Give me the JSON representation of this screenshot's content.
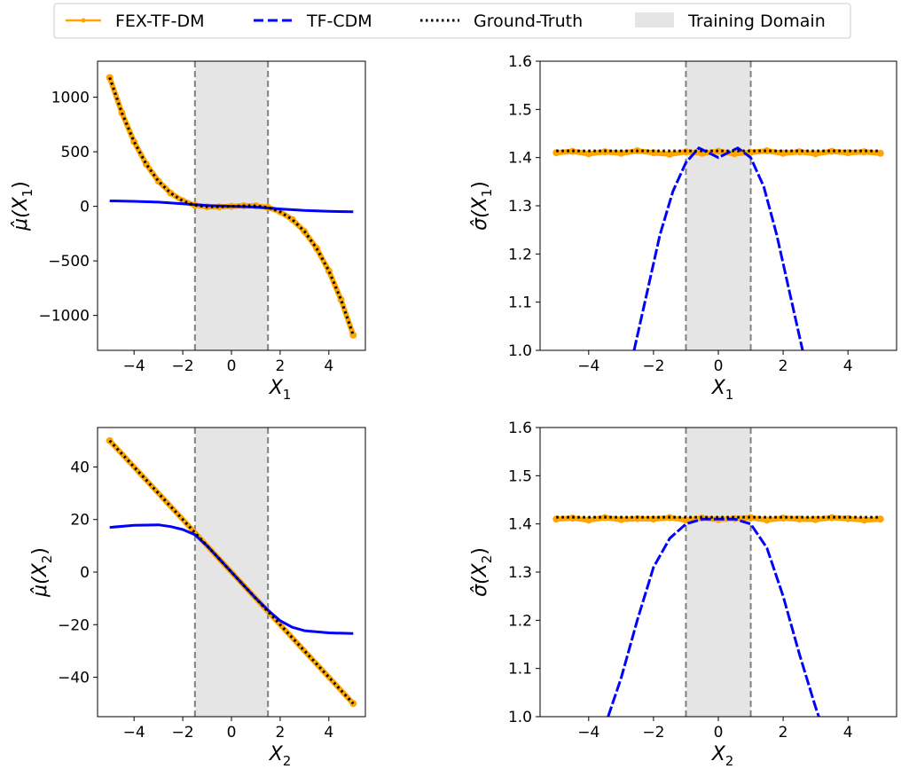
{
  "legend": {
    "items": [
      {
        "label": "FEX-TF-DM",
        "style": "orange-solid-dots",
        "color": "#FFA500"
      },
      {
        "label": "TF-CDM",
        "style": "blue-dashed",
        "color": "#0000FF"
      },
      {
        "label": "Ground-Truth",
        "style": "black-dotted",
        "color": "#000000"
      },
      {
        "label": "Training Domain",
        "style": "gray-patch",
        "color": "#E5E5E5"
      }
    ]
  },
  "chart_data": [
    {
      "id": "mu_x1",
      "type": "line",
      "xlabel_base": "X",
      "xlabel_sub": "1",
      "ylabel_base": "μ̂(X",
      "ylabel_sub": "1",
      "ylabel_close": ")",
      "xlim": [
        -5.5,
        5.5
      ],
      "ylim": [
        -1320,
        1330
      ],
      "xticks": [
        -4,
        -2,
        0,
        2,
        4
      ],
      "xtick_labels": [
        "−4",
        "−2",
        "0",
        "2",
        "4"
      ],
      "yticks": [
        -1000,
        -500,
        0,
        500,
        1000
      ],
      "ytick_labels": [
        "−1000",
        "−500",
        "0",
        "500",
        "1000"
      ],
      "training_domain": [
        -1.5,
        1.5
      ],
      "series": [
        {
          "name": "FEX-TF-DM",
          "x": [
            -5,
            -4.5,
            -4,
            -3.5,
            -3,
            -2.5,
            -2,
            -1.5,
            -1,
            -0.5,
            0,
            0.5,
            1,
            1.5,
            2,
            2.5,
            3,
            3.5,
            4,
            4.5,
            5
          ],
          "values": [
            1180,
            855,
            592,
            386,
            231,
            121,
            50,
            10,
            -4,
            -5,
            0,
            5,
            4,
            -10,
            -50,
            -121,
            -231,
            -386,
            -592,
            -855,
            -1180
          ]
        },
        {
          "name": "TF-CDM",
          "x": [
            -5,
            -4,
            -3,
            -2,
            -1.5,
            -1,
            -0.5,
            0,
            0.5,
            1,
            1.5,
            2,
            3,
            4,
            5
          ],
          "values": [
            50,
            46,
            38,
            24,
            15,
            7,
            3,
            0,
            -3,
            -7,
            -15,
            -24,
            -38,
            -46,
            -50
          ]
        },
        {
          "name": "Ground-Truth",
          "x": [
            -5,
            -4.5,
            -4,
            -3.5,
            -3,
            -2.5,
            -2,
            -1.5,
            -1,
            -0.5,
            0,
            0.5,
            1,
            1.5,
            2,
            2.5,
            3,
            3.5,
            4,
            4.5,
            5
          ],
          "values": [
            1180,
            855,
            592,
            386,
            231,
            121,
            50,
            10,
            -4,
            -5,
            0,
            5,
            4,
            -10,
            -50,
            -121,
            -231,
            -386,
            -592,
            -855,
            -1180
          ]
        }
      ]
    },
    {
      "id": "sigma_x1",
      "type": "line",
      "xlabel_base": "X",
      "xlabel_sub": "1",
      "ylabel_base": "σ̂(X",
      "ylabel_sub": "1",
      "ylabel_close": ")",
      "xlim": [
        -5.5,
        5.5
      ],
      "ylim": [
        1.0,
        1.6
      ],
      "xticks": [
        -4,
        -2,
        0,
        2,
        4
      ],
      "xtick_labels": [
        "−4",
        "−2",
        "0",
        "2",
        "4"
      ],
      "yticks": [
        1.0,
        1.1,
        1.2,
        1.3,
        1.4,
        1.5,
        1.6
      ],
      "ytick_labels": [
        "1.0",
        "1.1",
        "1.2",
        "1.3",
        "1.4",
        "1.5",
        "1.6"
      ],
      "training_domain": [
        -1.0,
        1.0
      ],
      "series": [
        {
          "name": "FEX-TF-DM",
          "x": [
            -5,
            -4.5,
            -4,
            -3.5,
            -3,
            -2.5,
            -2,
            -1.5,
            -1,
            -0.5,
            0,
            0.5,
            1,
            1.5,
            2,
            2.5,
            3,
            3.5,
            4,
            4.5,
            5
          ],
          "values": [
            1.41,
            1.413,
            1.408,
            1.412,
            1.409,
            1.414,
            1.41,
            1.407,
            1.412,
            1.409,
            1.413,
            1.408,
            1.411,
            1.414,
            1.409,
            1.412,
            1.408,
            1.413,
            1.41,
            1.412,
            1.409
          ]
        },
        {
          "name": "TF-CDM",
          "x": [
            -2.6,
            -2.2,
            -1.8,
            -1.4,
            -1.0,
            -0.6,
            -0.3,
            0,
            0.3,
            0.6,
            1.0,
            1.4,
            1.8,
            2.2,
            2.6
          ],
          "values": [
            1.0,
            1.12,
            1.24,
            1.33,
            1.39,
            1.42,
            1.41,
            1.4,
            1.41,
            1.42,
            1.4,
            1.34,
            1.24,
            1.12,
            1.0
          ]
        },
        {
          "name": "Ground-Truth",
          "x": [
            -5,
            5
          ],
          "values": [
            1.414,
            1.414
          ]
        }
      ]
    },
    {
      "id": "mu_x2",
      "type": "line",
      "xlabel_base": "X",
      "xlabel_sub": "2",
      "ylabel_base": "μ̂(X",
      "ylabel_sub": "2",
      "ylabel_close": ")",
      "xlim": [
        -5.5,
        5.5
      ],
      "ylim": [
        -55,
        55
      ],
      "xticks": [
        -4,
        -2,
        0,
        2,
        4
      ],
      "xtick_labels": [
        "−4",
        "−2",
        "0",
        "2",
        "4"
      ],
      "yticks": [
        -40,
        -20,
        0,
        20,
        40
      ],
      "ytick_labels": [
        "−40",
        "−20",
        "0",
        "20",
        "40"
      ],
      "training_domain": [
        -1.5,
        1.5
      ],
      "series": [
        {
          "name": "FEX-TF-DM",
          "x": [
            -5,
            5
          ],
          "values": [
            50,
            -50
          ]
        },
        {
          "name": "TF-CDM",
          "x": [
            -5,
            -4,
            -3,
            -2.5,
            -2,
            -1.5,
            -1,
            -0.5,
            0,
            0.5,
            1,
            1.5,
            2,
            2.5,
            3,
            4,
            5
          ],
          "values": [
            17,
            17.8,
            18,
            17.3,
            16.2,
            14.2,
            10,
            5,
            0,
            -5,
            -10,
            -14.5,
            -18.5,
            -21,
            -22.3,
            -23.1,
            -23.4
          ]
        },
        {
          "name": "Ground-Truth",
          "x": [
            -5,
            5
          ],
          "values": [
            50,
            -50
          ]
        }
      ]
    },
    {
      "id": "sigma_x2",
      "type": "line",
      "xlabel_base": "X",
      "xlabel_sub": "2",
      "ylabel_base": "σ̂(X",
      "ylabel_sub": "2",
      "ylabel_close": ")",
      "xlim": [
        -5.5,
        5.5
      ],
      "ylim": [
        1.0,
        1.6
      ],
      "xticks": [
        -4,
        -2,
        0,
        2,
        4
      ],
      "xtick_labels": [
        "−4",
        "−2",
        "0",
        "2",
        "4"
      ],
      "yticks": [
        1.0,
        1.1,
        1.2,
        1.3,
        1.4,
        1.5,
        1.6
      ],
      "ytick_labels": [
        "1.0",
        "1.1",
        "1.2",
        "1.3",
        "1.4",
        "1.5",
        "1.6"
      ],
      "training_domain": [
        -1.0,
        1.0
      ],
      "series": [
        {
          "name": "FEX-TF-DM",
          "x": [
            -5,
            -4.5,
            -4,
            -3.5,
            -3,
            -2.5,
            -2,
            -1.5,
            -1,
            -0.5,
            0,
            0.5,
            1,
            1.5,
            2,
            2.5,
            3,
            3.5,
            4,
            4.5,
            5
          ],
          "values": [
            1.41,
            1.412,
            1.408,
            1.413,
            1.409,
            1.411,
            1.41,
            1.413,
            1.408,
            1.412,
            1.409,
            1.411,
            1.413,
            1.408,
            1.412,
            1.41,
            1.409,
            1.413,
            1.411,
            1.408,
            1.41
          ]
        },
        {
          "name": "TF-CDM",
          "x": [
            -3.4,
            -3.0,
            -2.5,
            -2.0,
            -1.5,
            -1.0,
            -0.5,
            0,
            0.5,
            1.0,
            1.5,
            2.0,
            2.5,
            3.0,
            3.1
          ],
          "values": [
            1.0,
            1.08,
            1.2,
            1.31,
            1.37,
            1.4,
            1.41,
            1.41,
            1.41,
            1.4,
            1.35,
            1.25,
            1.13,
            1.02,
            1.0
          ]
        },
        {
          "name": "Ground-Truth",
          "x": [
            -5,
            5
          ],
          "values": [
            1.414,
            1.414
          ]
        }
      ]
    }
  ]
}
